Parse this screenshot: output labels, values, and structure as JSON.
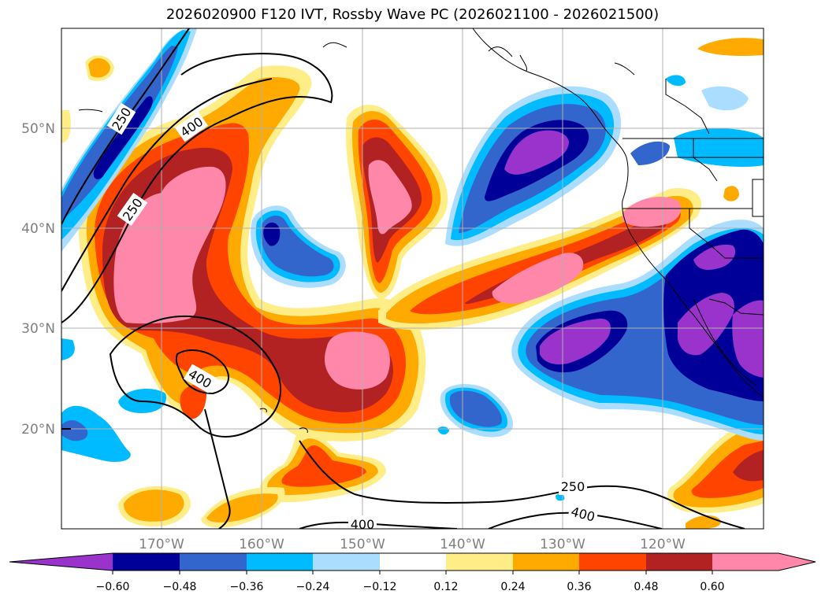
{
  "title": "2026020900 F120 IVT, Rossby Wave PC (2026021100 - 2026021500)",
  "latitude_labels": [
    "50°N",
    "40°N",
    "30°N",
    "20°N"
  ],
  "longitude_labels": [
    "170°W",
    "160°W",
    "150°W",
    "140°W",
    "130°W",
    "120°W"
  ],
  "contour_labels": [
    "250",
    "400",
    "250",
    "400",
    "250",
    "400",
    "400"
  ],
  "colorbar": {
    "tick_labels": [
      "−0.60",
      "−0.48",
      "−0.36",
      "−0.24",
      "−0.12",
      "0.12",
      "0.24",
      "0.36",
      "0.48",
      "0.60"
    ],
    "colors": [
      "#9933cc",
      "#000099",
      "#3366cc",
      "#00bbff",
      "#aaddff",
      "#ffffff",
      "#ffee88",
      "#ffaa00",
      "#ff4400",
      "#b22222",
      "#ff88aa"
    ]
  },
  "colors": {
    "strong_positive": "#ff88aa",
    "positive_4": "#b22222",
    "positive_3": "#ff4400",
    "positive_2": "#ffaa00",
    "positive_1": "#ffee88",
    "negative_1": "#aaddff",
    "negative_2": "#00bbff",
    "negative_3": "#3366cc",
    "negative_4": "#000099",
    "strong_negative": "#9933cc"
  }
}
